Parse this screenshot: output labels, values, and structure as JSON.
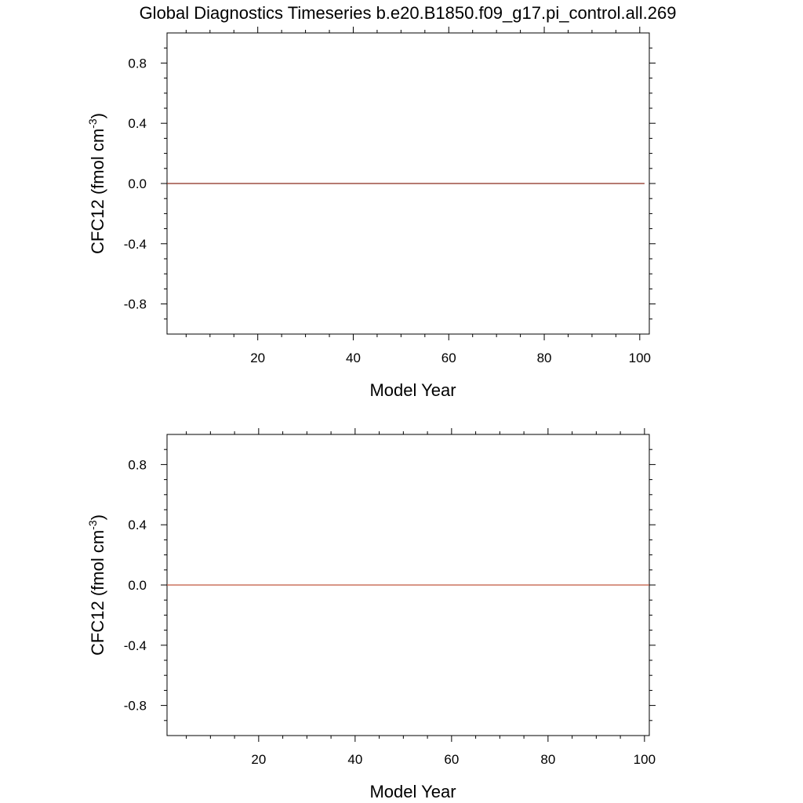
{
  "title": "Global Diagnostics Timeseries b.e20.B1850.f09_g17.pi_control.all.269",
  "chart_data": [
    {
      "type": "line",
      "xlabel": "Model Year",
      "ylabel": "CFC12 (fmol cm",
      "ylabel_sup": "-3",
      "ylabel_tail": ")",
      "xlim": [
        1,
        102
      ],
      "ylim": [
        -1.0,
        1.0
      ],
      "xticks": [
        20,
        40,
        60,
        80,
        100
      ],
      "xtick_labels": [
        "20",
        "40",
        "60",
        "80",
        "100"
      ],
      "yticks": [
        0.8,
        0.4,
        0.0,
        -0.4,
        -0.8
      ],
      "ytick_labels": [
        "0.8",
        "0.4",
        "0.0",
        "-0.4",
        "-0.8"
      ],
      "grid": false,
      "series": [
        {
          "color": "#8b2b1c",
          "x": [
            1,
            101
          ],
          "y": [
            0.0,
            0.0
          ]
        }
      ]
    },
    {
      "type": "line",
      "xlabel": "Model Year",
      "ylabel": "CFC12 (fmol cm",
      "ylabel_sup": "-3",
      "ylabel_tail": ")",
      "xlim": [
        1,
        101
      ],
      "ylim": [
        -1.0,
        1.0
      ],
      "xticks": [
        20,
        40,
        60,
        80,
        100
      ],
      "xtick_labels": [
        "20",
        "40",
        "60",
        "80",
        "100"
      ],
      "yticks": [
        0.8,
        0.4,
        0.0,
        -0.4,
        -0.8
      ],
      "ytick_labels": [
        "0.8",
        "0.4",
        "0.0",
        "-0.4",
        "-0.8"
      ],
      "grid": false,
      "series": [
        {
          "color": "#c0583e",
          "x": [
            1,
            101
          ],
          "y": [
            0.0,
            0.0
          ]
        }
      ]
    }
  ]
}
